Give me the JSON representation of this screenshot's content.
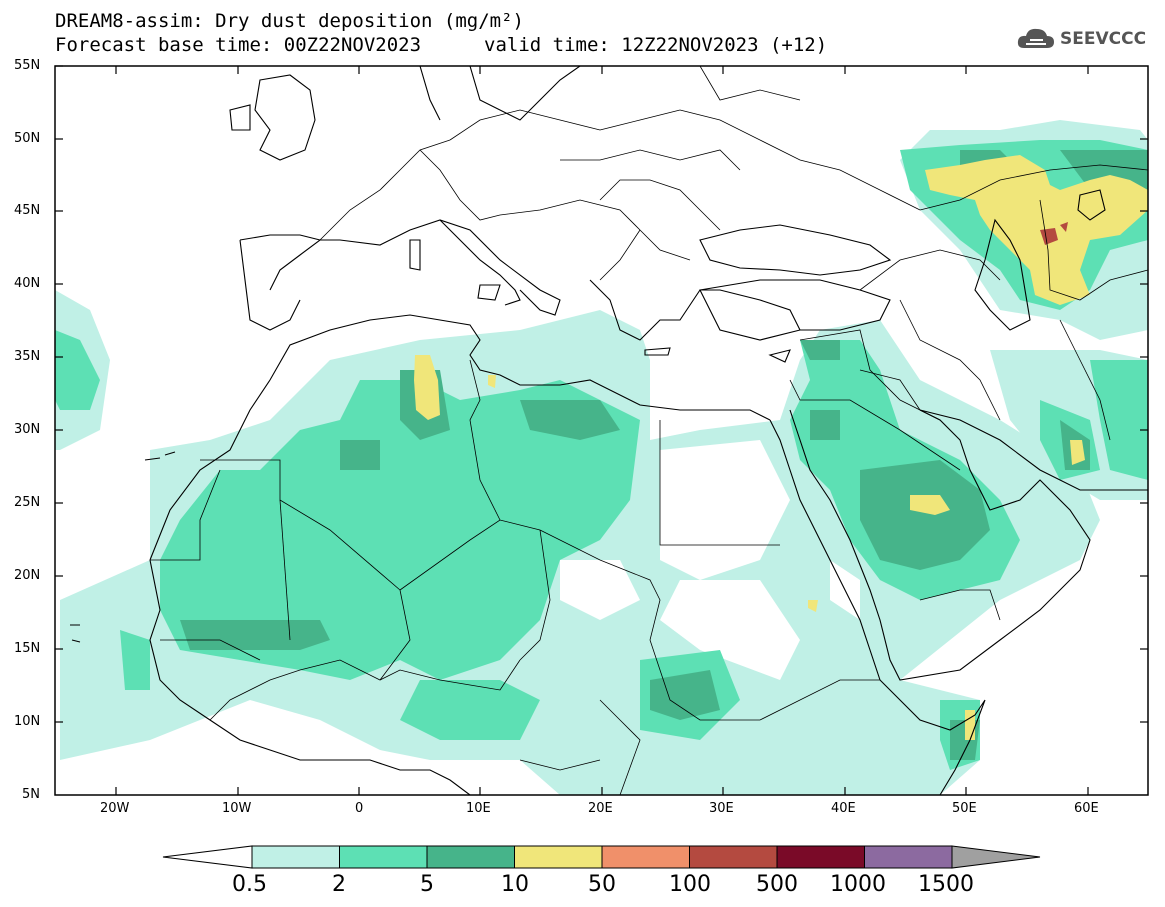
{
  "title": {
    "line1": "DREAM8-assim: Dry dust deposition (mg/m²)",
    "line2": "Forecast base time: 00Z22NOV2023",
    "valid": "valid time: 12Z22NOV2023 (+12)"
  },
  "logo": {
    "icon": "cloud-icon",
    "text": "SEEVCCC"
  },
  "axes": {
    "lat_labels": [
      "55N",
      "50N",
      "45N",
      "40N",
      "35N",
      "30N",
      "25N",
      "20N",
      "15N",
      "10N",
      "5N"
    ],
    "lon_labels": [
      "20W",
      "10W",
      "0",
      "10E",
      "20E",
      "30E",
      "40E",
      "50E",
      "60E"
    ]
  },
  "colors": {
    "c1": "#c0f0e6",
    "c2": "#5de0b4",
    "c3": "#46b48a",
    "c4": "#f0e67a",
    "c5": "#f0906a",
    "c6": "#b44a40",
    "c7": "#7a0a28",
    "c8": "#8c6aa0",
    "c9": "#a0a0a0"
  },
  "colorbar": {
    "labels": [
      "0.5",
      "2",
      "5",
      "10",
      "50",
      "100",
      "500",
      "1000",
      "1500"
    ]
  }
}
